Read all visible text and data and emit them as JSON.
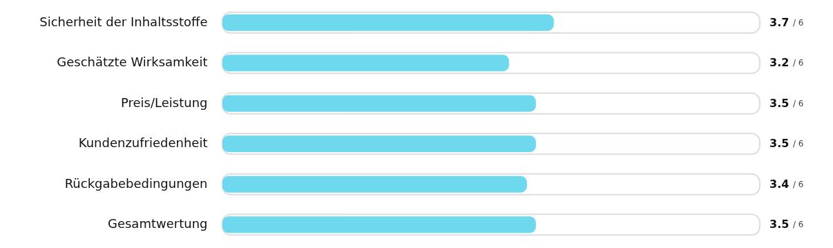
{
  "chart_data": {
    "type": "bar",
    "orientation": "horizontal",
    "categories": [
      "Sicherheit der Inhaltsstoffe",
      "Geschätzte Wirksamkeit",
      "Preis/Leistung",
      "Kundenzufriedenheit",
      "Rückgabebedingungen",
      "Gesamtwertung"
    ],
    "values": [
      3.7,
      3.2,
      3.5,
      3.5,
      3.4,
      3.5
    ],
    "data_labels": true,
    "annotations": [
      "/ 6",
      "/ 6",
      "/ 6",
      "/ 6",
      "/ 6",
      "/ 6"
    ],
    "color": "#6dd8ee",
    "xlim": [
      0,
      6
    ],
    "tick_labels": "y"
  }
}
